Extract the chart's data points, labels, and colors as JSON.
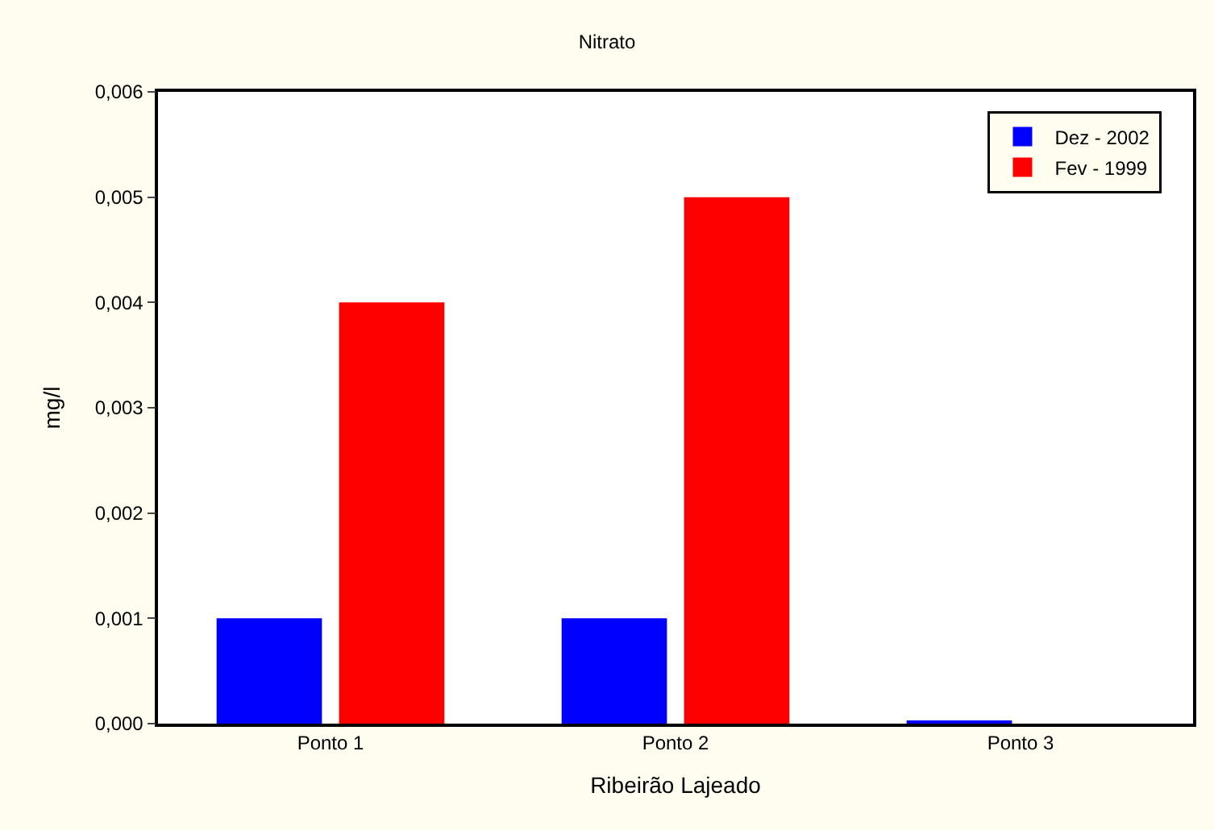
{
  "chart_data": {
    "type": "bar",
    "title": "Nitrato",
    "xlabel": "Ribeirão Lajeado",
    "ylabel": "mg/l",
    "categories": [
      "Ponto 1",
      "Ponto 2",
      "Ponto 3"
    ],
    "series": [
      {
        "name": "Dez - 2002",
        "color": "#0000ff",
        "values": [
          0.001,
          0.001,
          3e-05
        ]
      },
      {
        "name": "Fev - 1999",
        "color": "#ff0000",
        "values": [
          0.004,
          0.005,
          0
        ]
      }
    ],
    "ylim": [
      0,
      0.006
    ],
    "yticks": [
      {
        "value": 0,
        "label": "0,000"
      },
      {
        "value": 0.001,
        "label": "0,001"
      },
      {
        "value": 0.002,
        "label": "0,002"
      },
      {
        "value": 0.003,
        "label": "0,003"
      },
      {
        "value": 0.004,
        "label": "0,004"
      },
      {
        "value": 0.005,
        "label": "0,005"
      },
      {
        "value": 0.006,
        "label": "0,006"
      }
    ],
    "grid": false,
    "legend": "top right"
  }
}
